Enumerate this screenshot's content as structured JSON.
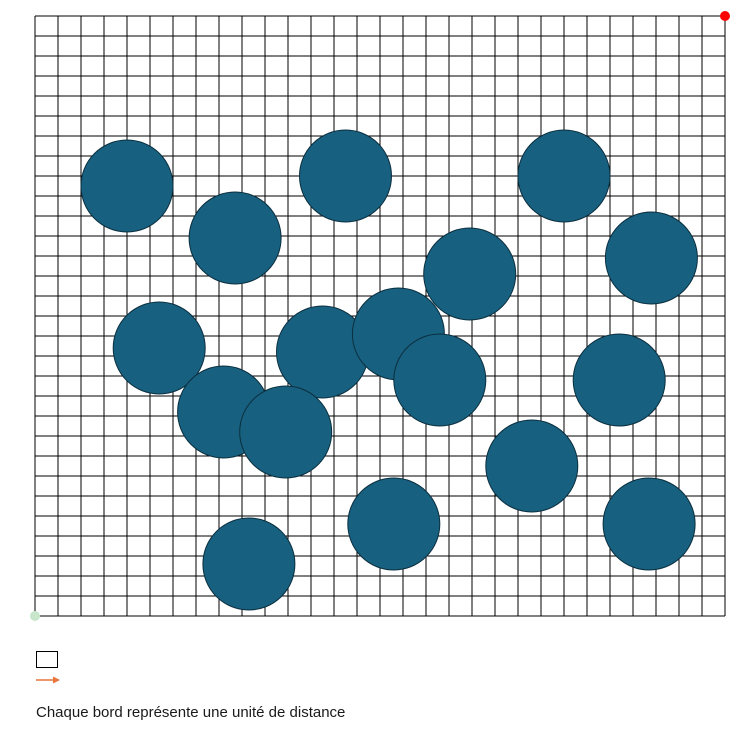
{
  "grid": {
    "cols": 30,
    "rows": 30,
    "line_color": "#000000",
    "background": "#ffffff"
  },
  "obstacles": {
    "color": "#17607f",
    "stroke": "#0b2f3f",
    "radius": 2,
    "centers": [
      [
        4,
        21.5
      ],
      [
        13.5,
        22
      ],
      [
        23,
        22
      ],
      [
        8.7,
        18.9
      ],
      [
        18.9,
        17.1
      ],
      [
        26.8,
        17.9
      ],
      [
        5.4,
        13.4
      ],
      [
        12.5,
        13.2
      ],
      [
        15.8,
        14.1
      ],
      [
        17.6,
        11.8
      ],
      [
        25.4,
        11.8
      ],
      [
        8.2,
        10.2
      ],
      [
        10.9,
        9.2
      ],
      [
        21.6,
        7.5
      ],
      [
        15.6,
        4.6
      ],
      [
        26.7,
        4.6
      ],
      [
        9.3,
        2.6
      ]
    ]
  },
  "markers": {
    "goal": {
      "x": 30,
      "y": 30,
      "color": "#ff0000"
    },
    "start": {
      "x": 0,
      "y": 0,
      "color": "#c8e6c9"
    }
  },
  "legend": {
    "cell_icon": "grid-cell-icon",
    "arrow_icon": "arrow-right-icon",
    "arrow_color": "#e8743b",
    "caption": "Chaque bord représente une unité de distance"
  }
}
